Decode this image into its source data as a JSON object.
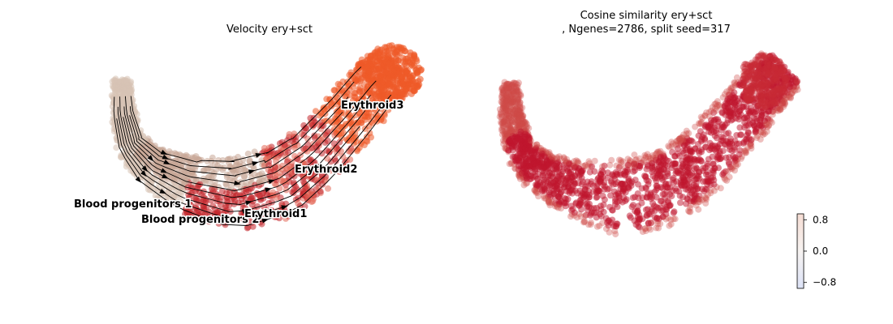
{
  "chart_data": [
    {
      "type": "scatter",
      "title": "Velocity ery+sct",
      "xlabel": "",
      "ylabel": "",
      "grid": false,
      "overlay": "streamlines",
      "clusters": [
        {
          "name": "Blood progenitors 1",
          "color": "#d7c2b4"
        },
        {
          "name": "Blood progenitors 2",
          "color": "#c8a898"
        },
        {
          "name": "Erythroid1",
          "color": "#c3262c"
        },
        {
          "name": "Erythroid2",
          "color": "#e46a5a"
        },
        {
          "name": "Erythroid3",
          "color": "#ef5a28"
        }
      ]
    },
    {
      "type": "scatter",
      "title_lines": [
        "Cosine similarity ery+sct",
        ", Ngenes=2786, split seed=317"
      ],
      "xlabel": "",
      "ylabel": "",
      "grid": false,
      "point_color": "#c0162e",
      "colorbar": {
        "ticks": [
          0.8,
          0.0,
          -0.8
        ],
        "tick_labels": [
          "0.8",
          "0.0",
          "−0.8"
        ],
        "range": [
          -0.95,
          0.95
        ],
        "colormap": [
          "#dde3f7",
          "#f7f3f1",
          "#f6ddd4"
        ]
      }
    }
  ]
}
